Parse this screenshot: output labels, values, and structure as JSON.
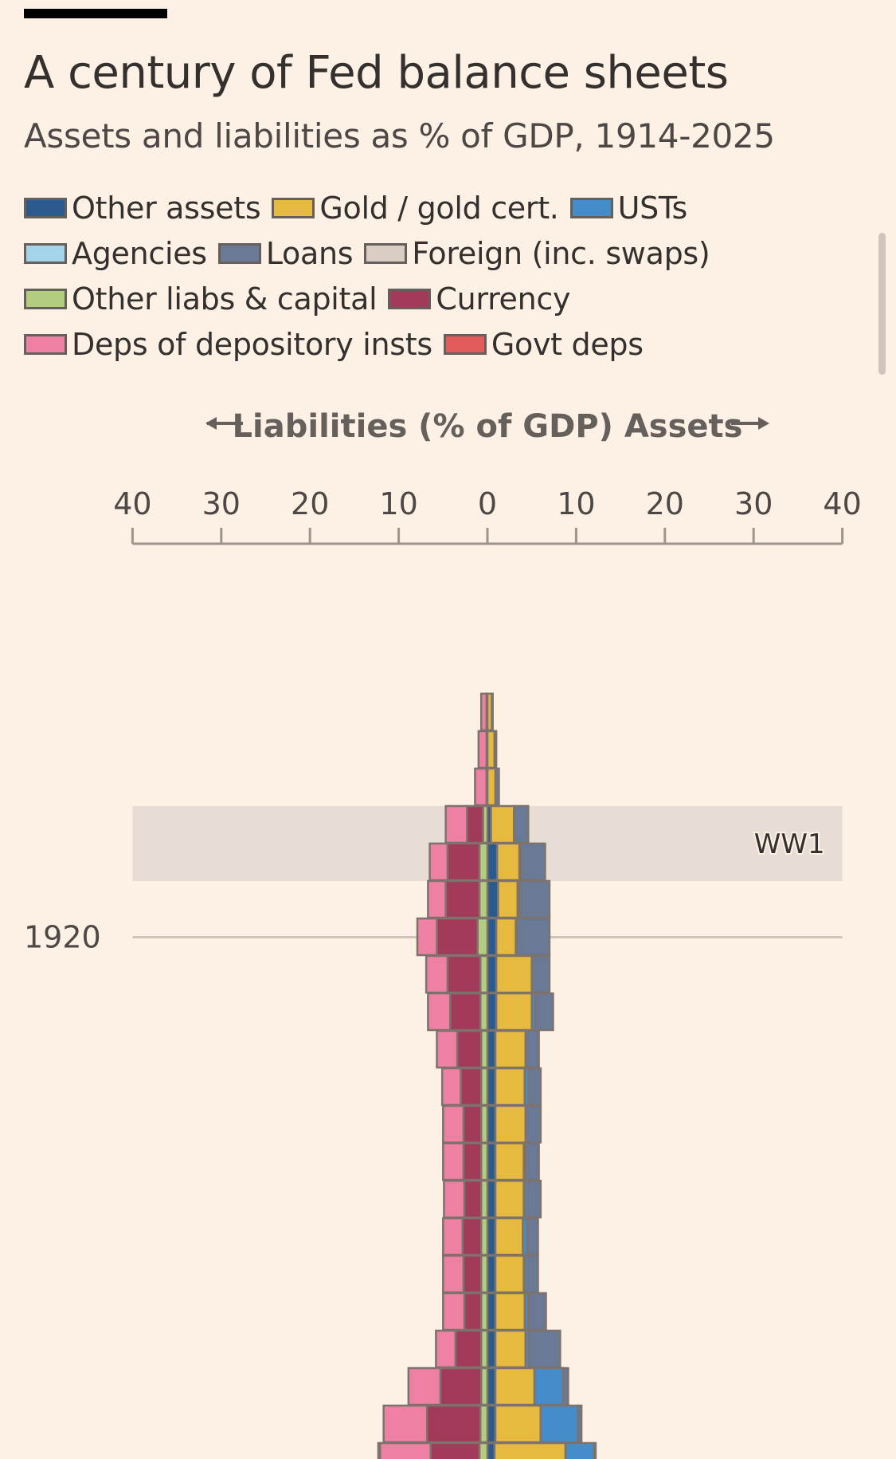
{
  "header": {
    "title": "A century of Fed balance sheets",
    "subtitle": "Assets and liabilities as % of GDP, 1914-2025"
  },
  "legend": [
    {
      "key": "other_assets",
      "label": "Other assets",
      "color": "#2b5a8f"
    },
    {
      "key": "gold",
      "label": "Gold / gold cert.",
      "color": "#e6b93f"
    },
    {
      "key": "usts",
      "label": "USTs",
      "color": "#458ccb"
    },
    {
      "key": "agencies",
      "label": "Agencies",
      "color": "#a4d4ea"
    },
    {
      "key": "loans",
      "label": "Loans",
      "color": "#6a7a96"
    },
    {
      "key": "foreign",
      "label": "Foreign (inc. swaps)",
      "color": "#d9cdc4"
    },
    {
      "key": "other_liabs",
      "label": "Other liabs & capital",
      "color": "#b3cd7f"
    },
    {
      "key": "currency",
      "label": "Currency",
      "color": "#a23a5a"
    },
    {
      "key": "deps_depository",
      "label": "Deps of depository insts",
      "color": "#ee80a3"
    },
    {
      "key": "govt_deps",
      "label": "Govt deps",
      "color": "#e35b5b"
    }
  ],
  "chart_data": {
    "type": "bar",
    "orientation": "horizontal-diverging-stacked",
    "title": "A century of Fed balance sheets",
    "subtitle": "Assets and liabilities as % of GDP, 1914-2025",
    "axis_title": {
      "left_arrow": "←",
      "text": "Liabilities (% of GDP) Assets",
      "right_arrow": "→"
    },
    "xlim": [
      -40,
      40
    ],
    "x_ticks": [
      -40,
      -30,
      -20,
      -10,
      0,
      10,
      20,
      30,
      40
    ],
    "x_tick_labels": [
      "40",
      "30",
      "20",
      "10",
      "0",
      "10",
      "20",
      "30",
      "40"
    ],
    "y_labels": [
      {
        "year": 1920,
        "label": "1920"
      }
    ],
    "annotations": [
      {
        "label": "WW1",
        "from": 1917,
        "to": 1918
      }
    ],
    "asset_order": [
      "other_assets",
      "gold",
      "usts",
      "agencies",
      "loans",
      "foreign"
    ],
    "liability_order": [
      "other_liabs",
      "currency",
      "deps_depository",
      "govt_deps"
    ],
    "years": [
      1914,
      1915,
      1916,
      1917,
      1918,
      1919,
      1920,
      1921,
      1922,
      1923,
      1924,
      1925,
      1926,
      1927,
      1928,
      1929,
      1930,
      1931,
      1932,
      1933,
      1934
    ],
    "series": {
      "other_assets": [
        0.0,
        0.0,
        0.0,
        0.4,
        1.1,
        1.2,
        1.0,
        1.0,
        1.0,
        0.9,
        0.9,
        0.9,
        0.9,
        0.9,
        0.9,
        0.9,
        0.9,
        0.9,
        0.9,
        0.9,
        0.8
      ],
      "gold": [
        0.5,
        0.8,
        0.9,
        2.6,
        2.5,
        2.2,
        2.2,
        4.0,
        4.0,
        3.4,
        3.3,
        3.4,
        3.2,
        3.2,
        3.1,
        3.2,
        3.3,
        3.4,
        4.4,
        5.1,
        8.0
      ],
      "usts": [
        0.0,
        0.0,
        0.0,
        0.0,
        0.2,
        0.2,
        0.1,
        0.0,
        0.4,
        0.0,
        0.5,
        0.0,
        0.2,
        0.0,
        0.5,
        0.0,
        0.4,
        0.4,
        3.2,
        4.2,
        3.2
      ],
      "agencies": [
        0,
        0,
        0,
        0,
        0,
        0,
        0,
        0,
        0,
        0,
        0,
        0,
        0,
        0,
        0,
        0,
        0,
        0,
        0,
        0,
        0
      ],
      "loans": [
        0.1,
        0.2,
        0.4,
        1.6,
        2.7,
        3.4,
        3.7,
        2.0,
        2.0,
        1.5,
        1.3,
        1.7,
        1.5,
        1.9,
        1.2,
        1.6,
        2.0,
        3.5,
        0.6,
        0.4,
        0.2
      ],
      "foreign": [
        0,
        0,
        0,
        0,
        0,
        0,
        0,
        0,
        0,
        0,
        0,
        0,
        0,
        0,
        0,
        0,
        0,
        0,
        0,
        0,
        0
      ],
      "other_liabs": [
        0.1,
        0.1,
        0.1,
        0.5,
        0.9,
        0.9,
        1.1,
        0.8,
        0.8,
        0.7,
        0.7,
        0.7,
        0.7,
        0.7,
        0.7,
        0.7,
        0.7,
        0.7,
        0.7,
        0.8,
        0.9
      ],
      "currency": [
        0.0,
        0.0,
        0.0,
        1.8,
        3.6,
        3.8,
        4.6,
        3.7,
        3.4,
        2.7,
        2.3,
        2.0,
        2.0,
        1.9,
        2.1,
        2.0,
        1.9,
        2.9,
        4.6,
        6.0,
        5.5
      ],
      "deps_depository": [
        0.6,
        0.9,
        1.3,
        2.4,
        2.0,
        2.0,
        2.2,
        2.4,
        2.5,
        2.3,
        2.1,
        2.3,
        2.3,
        2.3,
        2.2,
        2.3,
        2.4,
        2.2,
        3.6,
        4.9,
        5.7
      ],
      "govt_deps": [
        0,
        0,
        0,
        0,
        0,
        0,
        0,
        0,
        0,
        0,
        0,
        0,
        0,
        0,
        0,
        0,
        0,
        0,
        0,
        0,
        0.2
      ]
    }
  }
}
